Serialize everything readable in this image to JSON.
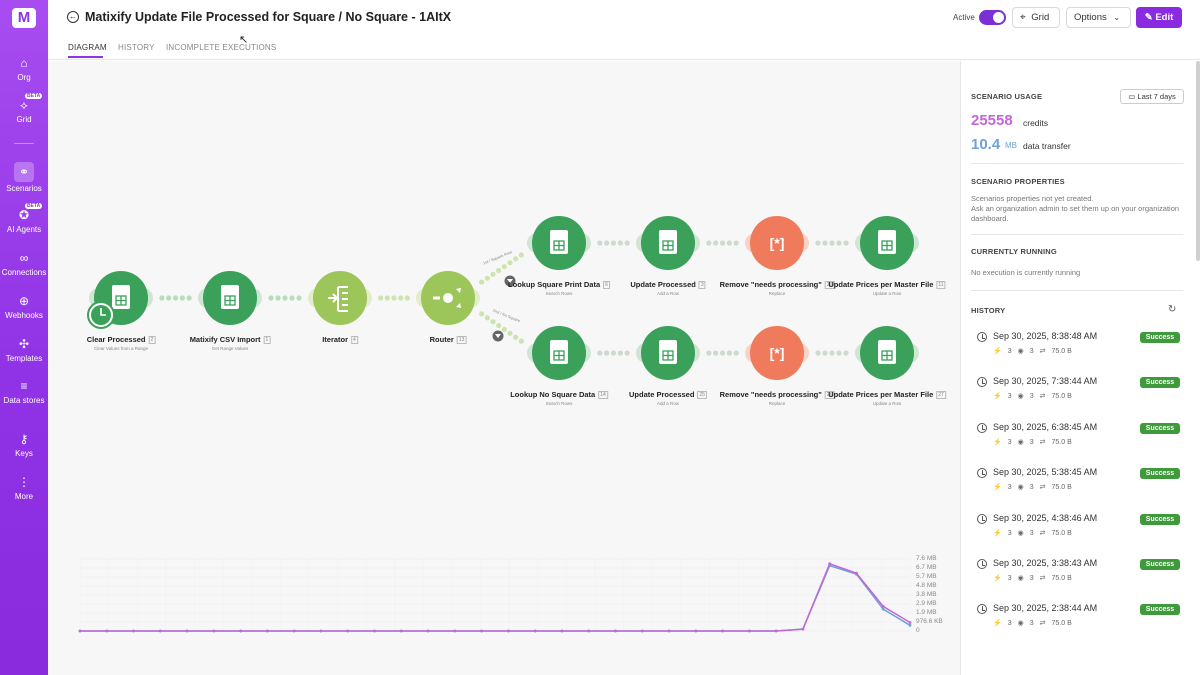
{
  "sidebar": {
    "logo": "M",
    "items": [
      {
        "label": "Org",
        "icon": "home-icon",
        "glyph": "⌂"
      },
      {
        "label": "Grid",
        "icon": "grid-icon",
        "glyph": "⟡",
        "badge": "BETA"
      },
      {
        "label": "Scenarios",
        "icon": "share-icon",
        "glyph": "⚭",
        "active": true
      },
      {
        "label": "AI Agents",
        "icon": "ai-agent-icon",
        "glyph": "✪",
        "badge": "BETA"
      },
      {
        "label": "Connections",
        "icon": "link-icon",
        "glyph": "∞"
      },
      {
        "label": "Webhooks",
        "icon": "globe-icon",
        "glyph": "⊕"
      },
      {
        "label": "Templates",
        "icon": "puzzle-icon",
        "glyph": "✣"
      },
      {
        "label": "Data stores",
        "icon": "database-icon",
        "glyph": "≡"
      },
      {
        "label": "Keys",
        "icon": "key-icon",
        "glyph": "⚷"
      },
      {
        "label": "More",
        "icon": "more-vertical-icon",
        "glyph": "⋮"
      }
    ]
  },
  "header": {
    "title": "Matixify Update File Processed for Square / No Square - 1AItX",
    "tabs": [
      "DIAGRAM",
      "HISTORY",
      "INCOMPLETE EXECUTIONS"
    ],
    "active_label": "Active",
    "grid_label": "Grid",
    "options_label": "Options",
    "edit_label": "Edit"
  },
  "modules": [
    {
      "id": "clear",
      "title": "Clear Processed",
      "sub": "Clear Values from a Range",
      "num": "2",
      "kind": "sheets"
    },
    {
      "id": "csv",
      "title": "Matixify CSV Import",
      "sub": "Get Range Values",
      "num": "1",
      "kind": "sheets"
    },
    {
      "id": "iter",
      "title": "Iterator",
      "sub": "",
      "num": "4",
      "kind": "iterator"
    },
    {
      "id": "router",
      "title": "Router",
      "sub": "",
      "num": "13",
      "kind": "router"
    },
    {
      "id": "lsq",
      "title": "Lookup Square Print Data",
      "sub": "Search Rows",
      "num": "6",
      "kind": "sheets"
    },
    {
      "id": "up1",
      "title": "Update Processed",
      "sub": "Add a Row",
      "num": "3",
      "kind": "sheets"
    },
    {
      "id": "rm1",
      "title": "Remove \"needs processing\"",
      "sub": "Replace",
      "num": "20",
      "kind": "text"
    },
    {
      "id": "upm1",
      "title": "Update Prices per Master File",
      "sub": "Update a Row",
      "num": "11",
      "kind": "sheets"
    },
    {
      "id": "lnsq",
      "title": "Lookup No Square Data",
      "sub": "Search Rows",
      "num": "14",
      "kind": "sheets"
    },
    {
      "id": "up2",
      "title": "Update Processed",
      "sub": "Add a Row",
      "num": "25",
      "kind": "sheets"
    },
    {
      "id": "rm2",
      "title": "Remove \"needs processing\"",
      "sub": "Replace",
      "num": "26",
      "kind": "text"
    },
    {
      "id": "upm2",
      "title": "Update Prices per Master File",
      "sub": "Update a Row",
      "num": "27",
      "kind": "sheets"
    }
  ],
  "filters": {
    "top": "1st / Square Print",
    "bottom": "2nd / No Square"
  },
  "chart_data": {
    "type": "line",
    "yticks": [
      "7.6 MB",
      "6.7 MB",
      "5.7 MB",
      "4.8 MB",
      "3.8 MB",
      "2.9 MB",
      "1.9 MB",
      "976.6 KB",
      "0"
    ],
    "series": [
      {
        "color": "#6ea3d4",
        "values": [
          0,
          0,
          0,
          0,
          0,
          0,
          0,
          0,
          0,
          0,
          0,
          0,
          0,
          0,
          0,
          0,
          0,
          0,
          0,
          0,
          0,
          0,
          0,
          0,
          0,
          0,
          0,
          0.2,
          6.9,
          6.0,
          2.3,
          0.6
        ]
      },
      {
        "color": "#c266d8",
        "values": [
          0,
          0,
          0,
          0,
          0,
          0,
          0,
          0,
          0,
          0,
          0,
          0,
          0,
          0,
          0,
          0,
          0,
          0,
          0,
          0,
          0,
          0,
          0,
          0,
          0,
          0,
          0,
          0.2,
          7.1,
          6.1,
          2.6,
          0.9
        ]
      }
    ],
    "ylim": [
      0,
      7.6
    ]
  },
  "panel": {
    "usage_title": "SCENARIO USAGE",
    "range_label": "Last 7 days",
    "credits": "25558",
    "credits_label": "credits",
    "transfer": "10.4",
    "transfer_unit": "MB",
    "transfer_label": "data transfer",
    "props_title": "SCENARIO PROPERTIES",
    "props_text1": "Scenarios properties not yet created.",
    "props_text2": "Ask an organization admin to set them up on your organization dashboard.",
    "running_title": "CURRENTLY RUNNING",
    "running_text": "No execution is currently running",
    "history_title": "HISTORY",
    "history": [
      {
        "date": "Sep 30, 2025, 8:38:48 AM",
        "status": "Success",
        "ops": "3",
        "data_ops": "3",
        "transfer": "75.0 B"
      },
      {
        "date": "Sep 30, 2025, 7:38:44 AM",
        "status": "Success",
        "ops": "3",
        "data_ops": "3",
        "transfer": "75.0 B"
      },
      {
        "date": "Sep 30, 2025, 6:38:45 AM",
        "status": "Success",
        "ops": "3",
        "data_ops": "3",
        "transfer": "75.0 B"
      },
      {
        "date": "Sep 30, 2025, 5:38:45 AM",
        "status": "Success",
        "ops": "3",
        "data_ops": "3",
        "transfer": "75.0 B"
      },
      {
        "date": "Sep 30, 2025, 4:38:46 AM",
        "status": "Success",
        "ops": "3",
        "data_ops": "3",
        "transfer": "75.0 B"
      },
      {
        "date": "Sep 30, 2025, 3:38:43 AM",
        "status": "Success",
        "ops": "3",
        "data_ops": "3",
        "transfer": "75.0 B"
      },
      {
        "date": "Sep 30, 2025, 2:38:44 AM",
        "status": "Success",
        "ops": "3",
        "data_ops": "3",
        "transfer": "75.0 B"
      }
    ]
  },
  "colors": {
    "accent": "#8a2be2",
    "sheets": "#3aa05a",
    "iterator": "#9dc65a",
    "text": "#ef7b5c",
    "success": "#3e9a3a"
  }
}
